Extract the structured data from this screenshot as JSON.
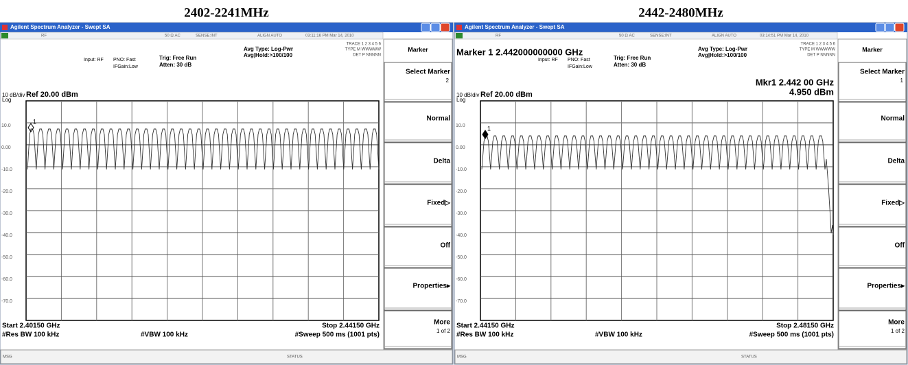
{
  "panels": [
    {
      "heading": "2402-2241MHz",
      "window_title": "Agilent Spectrum Analyzer - Swept SA",
      "status_row": [
        "RF",
        "50 Ω  AC",
        "SENSE:INT",
        "ALIGN AUTO",
        "03:11:16 PM Mar 14, 2010"
      ],
      "settings": {
        "input": "Input: RF",
        "pno": "PNO: Fast",
        "ifgain": "IFGain:Low",
        "trig": "Trig: Free Run",
        "atten": "Atten: 30 dB",
        "avg_type": "Avg Type: Log-Pwr",
        "avg_hold": "Avg|Hold:>100/100"
      },
      "trace_table": [
        "TRACE 1 2 3 4 5 6",
        "TYPE M WWWWW",
        "DET P NNNNN"
      ],
      "scale": "10 dB/div",
      "scale_type": "Log",
      "ref_level": "Ref 20.00 dBm",
      "y_labels": [
        "10.0",
        "0.00",
        "-10.0",
        "-20.0",
        "-30.0",
        "-40.0",
        "-50.0",
        "-60.0",
        "-70.0"
      ],
      "marker_tag": "1",
      "start": "Start 2.40150 GHz",
      "stop": "Stop 2.44150 GHz",
      "res_bw": "#Res BW 100 kHz",
      "vbw": "#VBW 100 kHz",
      "sweep": "#Sweep 500 ms (1001 pts)",
      "status_bar": [
        "MSG",
        "STATUS"
      ],
      "softkeys": {
        "menu": "Marker",
        "select": "Select Marker",
        "select_value": "2",
        "normal": "Normal",
        "delta": "Delta",
        "fixed": "Fixed▷",
        "off": "Off",
        "properties": "Properties▸",
        "more": "More",
        "page": "1 of 2"
      }
    },
    {
      "heading": "2442-2480MHz",
      "window_title": "Agilent Spectrum Analyzer - Swept SA",
      "status_row": [
        "RF",
        "50 Ω  AC",
        "SENSE:INT",
        "ALIGN AUTO",
        "03:14:51 PM Mar 14, 2010"
      ],
      "marker_line": "Marker 1  2.442000000000 GHz",
      "settings": {
        "input": "Input: RF",
        "pno": "PNO: Fast",
        "ifgain": "IFGain:Low",
        "trig": "Trig: Free Run",
        "atten": "Atten: 30 dB",
        "avg_type": "Avg Type: Log-Pwr",
        "avg_hold": "Avg|Hold:>100/100"
      },
      "trace_table": [
        "TRACE 1 2 3 4 5 6",
        "TYPE M WWWWW",
        "DET P NNNNN"
      ],
      "marker_readout": [
        "Mkr1 2.442 00 GHz",
        "4.950 dBm"
      ],
      "scale": "10 dB/div",
      "scale_type": "Log",
      "ref_level": "Ref 20.00 dBm",
      "y_labels": [
        "10.0",
        "0.00",
        "-10.0",
        "-20.0",
        "-30.0",
        "-40.0",
        "-50.0",
        "-60.0",
        "-70.0"
      ],
      "marker_tag": "1",
      "start": "Start 2.44150 GHz",
      "stop": "Stop 2.48150 GHz",
      "res_bw": "#Res BW 100 kHz",
      "vbw": "#VBW 100 kHz",
      "sweep": "#Sweep  500 ms (1001 pts)",
      "status_bar": [
        "MSG",
        "STATUS"
      ],
      "softkeys": {
        "menu": "Marker",
        "select": "Select Marker",
        "select_value": "1",
        "normal": "Normal",
        "delta": "Delta",
        "fixed": "Fixed▷",
        "off": "Off",
        "properties": "Properties▸",
        "more": "More",
        "page": "1 of 2"
      }
    }
  ]
}
